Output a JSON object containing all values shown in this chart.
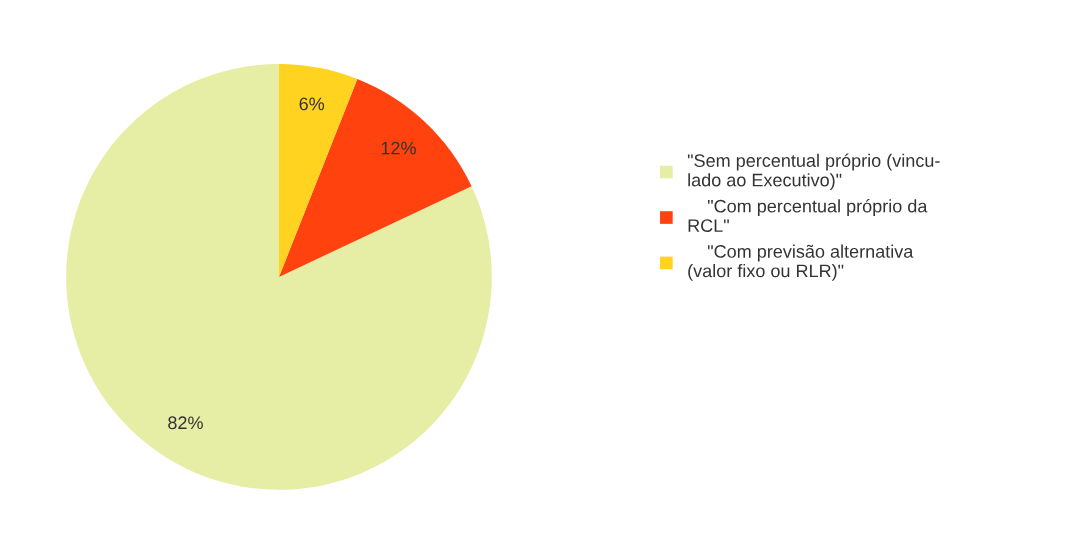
{
  "chart_data": {
    "type": "pie",
    "categories": [
      "\"Sem percentual próprio (vincu-\nlado ao Executivo)\"",
      "    \"Com percentual próprio da\nRCL\"",
      "    \"Com previsão alternativa\n(valor fixo ou RLR)\""
    ],
    "values": [
      82,
      12,
      6
    ],
    "colors": [
      "#e6eea6",
      "#ff420e",
      "#ffd320"
    ],
    "value_labels": [
      "82%",
      "12%",
      "6%"
    ],
    "legend": "right"
  }
}
